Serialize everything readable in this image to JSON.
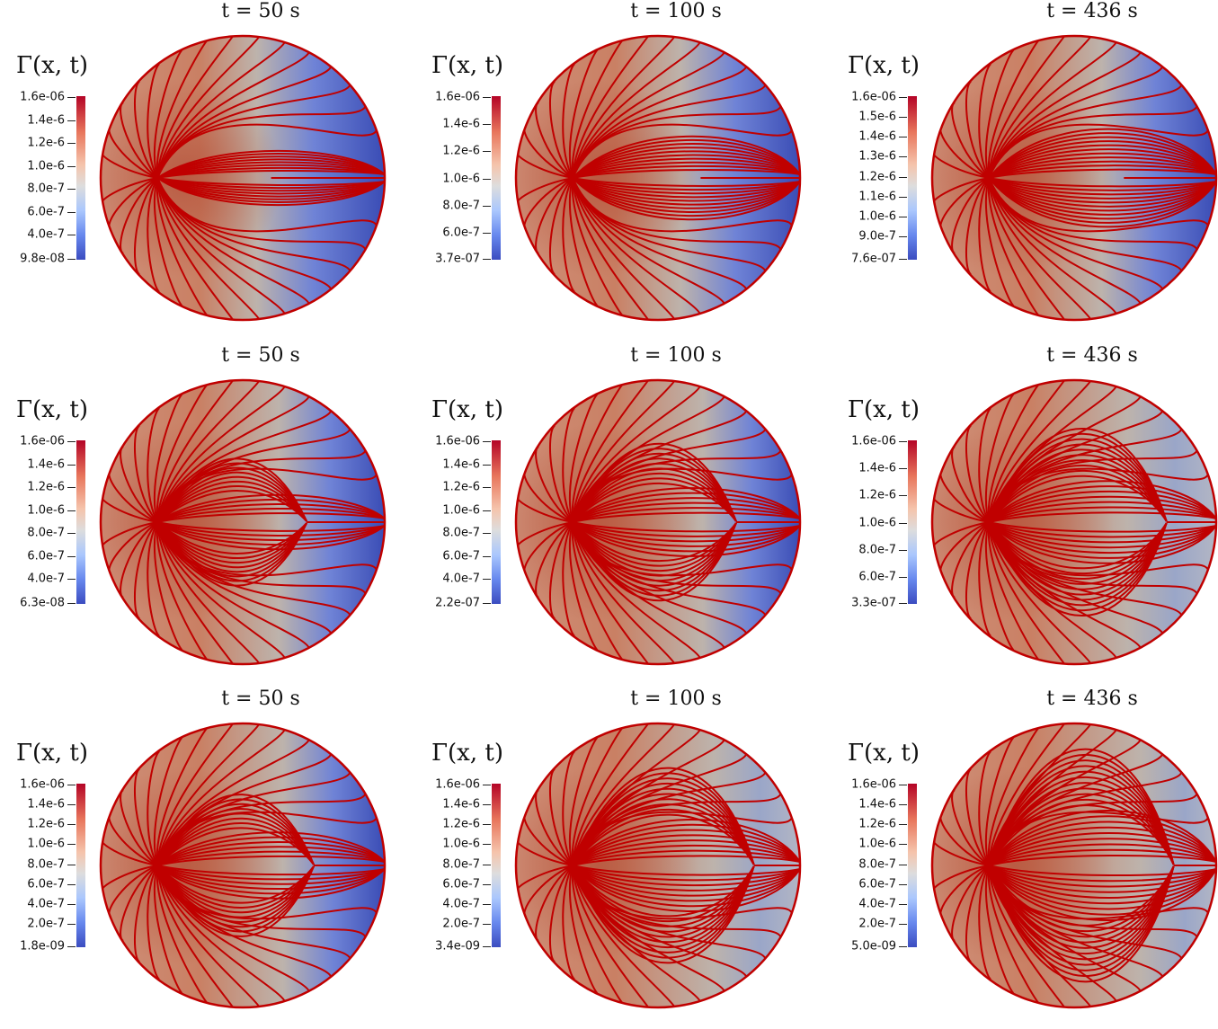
{
  "colorbar_title": "Γ(x, t)",
  "colormap": {
    "high": "#b40426",
    "mid": "#dddddd",
    "low": "#3b4cc0",
    "streamline": "#c00000"
  },
  "panels": [
    {
      "time": "t = 50 s",
      "ticks": [
        "1.6e-06",
        "1.4e-6",
        "1.2e-6",
        "1.0e-6",
        "8.0e-7",
        "6.0e-7",
        "4.0e-7",
        "9.8e-08"
      ],
      "pattern": 0
    },
    {
      "time": "t = 100 s",
      "ticks": [
        "1.6e-06",
        "1.4e-6",
        "1.2e-6",
        "1.0e-6",
        "8.0e-7",
        "6.0e-7",
        "3.7e-07"
      ],
      "pattern": 0.4
    },
    {
      "time": "t = 436 s",
      "ticks": [
        "1.6e-06",
        "1.5e-6",
        "1.4e-6",
        "1.3e-6",
        "1.2e-6",
        "1.1e-6",
        "1.0e-6",
        "9.0e-7",
        "7.6e-07"
      ],
      "pattern": 0.6
    },
    {
      "time": "t = 50 s",
      "ticks": [
        "1.6e-06",
        "1.4e-6",
        "1.2e-6",
        "1.0e-6",
        "8.0e-7",
        "6.0e-7",
        "4.0e-7",
        "6.3e-08"
      ],
      "pattern": 1
    },
    {
      "time": "t = 100 s",
      "ticks": [
        "1.6e-06",
        "1.4e-6",
        "1.2e-6",
        "1.0e-6",
        "8.0e-7",
        "6.0e-7",
        "4.0e-7",
        "2.2e-07"
      ],
      "pattern": 1.4
    },
    {
      "time": "t = 436 s",
      "ticks": [
        "1.6e-06",
        "1.4e-6",
        "1.2e-6",
        "1.0e-6",
        "8.0e-7",
        "6.0e-7",
        "3.3e-07"
      ],
      "pattern": 1.8
    },
    {
      "time": "t = 50 s",
      "ticks": [
        "1.6e-06",
        "1.4e-6",
        "1.2e-6",
        "1.0e-6",
        "8.0e-7",
        "6.0e-7",
        "4.0e-7",
        "2.0e-7",
        "1.8e-09"
      ],
      "pattern": 1.2
    },
    {
      "time": "t = 100 s",
      "ticks": [
        "1.6e-06",
        "1.4e-6",
        "1.2e-6",
        "1.0e-6",
        "8.0e-7",
        "6.0e-7",
        "4.0e-7",
        "2.0e-7",
        "3.4e-09"
      ],
      "pattern": 1.9
    },
    {
      "time": "t = 436 s",
      "ticks": [
        "1.6e-06",
        "1.4e-6",
        "1.2e-6",
        "1.0e-6",
        "8.0e-7",
        "6.0e-7",
        "4.0e-7",
        "2.0e-7",
        "5.0e-09"
      ],
      "pattern": 2.4
    }
  ]
}
